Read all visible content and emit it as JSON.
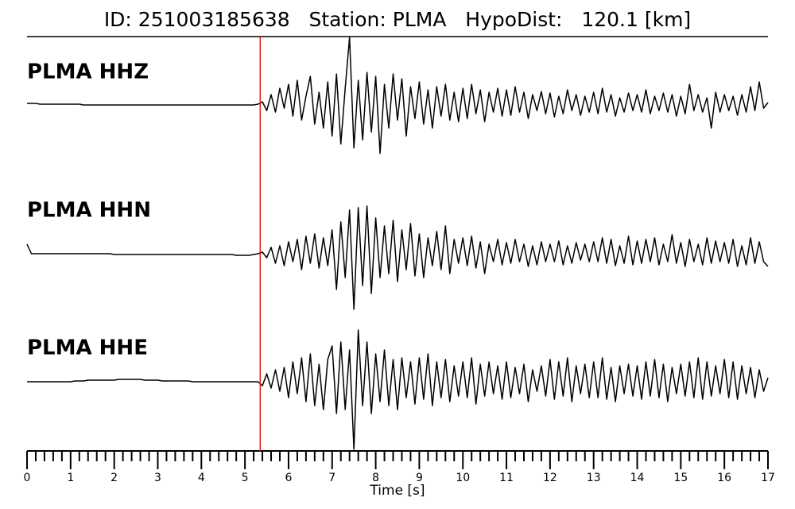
{
  "chart_data": {
    "type": "line",
    "title": "ID: 251003185638   Station: PLMA   HypoDist:   120.1 [km]",
    "xlabel": "Time [s]",
    "xlim": [
      0,
      17
    ],
    "xticks": [
      0,
      1,
      2,
      3,
      4,
      5,
      6,
      7,
      8,
      9,
      10,
      11,
      12,
      13,
      14,
      15,
      16,
      17
    ],
    "xminorticks": [
      0.2,
      0.4,
      0.6,
      0.8,
      1.2,
      1.4,
      1.6,
      1.8,
      2.2,
      2.4,
      2.6,
      2.8,
      3.2,
      3.4,
      3.6,
      3.8,
      4.2,
      4.4,
      4.6,
      4.8,
      5.2,
      5.4,
      5.6,
      5.8,
      6.2,
      6.4,
      6.6,
      6.8,
      7.2,
      7.4,
      7.6,
      7.8,
      8.2,
      8.4,
      8.6,
      8.8,
      9.2,
      9.4,
      9.6,
      9.8,
      10.2,
      10.4,
      10.6,
      10.8,
      11.2,
      11.4,
      11.6,
      11.8,
      12.2,
      12.4,
      12.6,
      12.8,
      13.2,
      13.4,
      13.6,
      13.8,
      14.2,
      14.4,
      14.6,
      14.8,
      15.2,
      15.4,
      15.6,
      15.8,
      16.2,
      16.4,
      16.6,
      16.8
    ],
    "pick_time": 5.35,
    "pick_color": "#e41a1c",
    "label_color": "#4c9a0a",
    "x": [
      0,
      0.1,
      0.2,
      0.3,
      0.4,
      0.5,
      0.6,
      0.7,
      0.8,
      0.9,
      1,
      1.1,
      1.2,
      1.3,
      1.4,
      1.5,
      1.6,
      1.7,
      1.8,
      1.9,
      2,
      2.1,
      2.2,
      2.3,
      2.4,
      2.5,
      2.6,
      2.7,
      2.8,
      2.9,
      3,
      3.1,
      3.2,
      3.3,
      3.4,
      3.5,
      3.6,
      3.7,
      3.8,
      3.9,
      4,
      4.1,
      4.2,
      4.3,
      4.4,
      4.5,
      4.6,
      4.7,
      4.8,
      4.9,
      5,
      5.1,
      5.2,
      5.3,
      5.4,
      5.5,
      5.6,
      5.7,
      5.8,
      5.9,
      6,
      6.1,
      6.2,
      6.3,
      6.4,
      6.5,
      6.6,
      6.7,
      6.8,
      6.9,
      7,
      7.1,
      7.2,
      7.3,
      7.4,
      7.5,
      7.6,
      7.7,
      7.8,
      7.9,
      8,
      8.1,
      8.2,
      8.3,
      8.4,
      8.5,
      8.6,
      8.7,
      8.8,
      8.9,
      9,
      9.1,
      9.2,
      9.3,
      9.4,
      9.5,
      9.6,
      9.7,
      9.8,
      9.9,
      10,
      10.1,
      10.2,
      10.3,
      10.4,
      10.5,
      10.6,
      10.7,
      10.8,
      10.9,
      11,
      11.1,
      11.2,
      11.3,
      11.4,
      11.5,
      11.6,
      11.7,
      11.8,
      11.9,
      12,
      12.1,
      12.2,
      12.3,
      12.4,
      12.5,
      12.6,
      12.7,
      12.8,
      12.9,
      13,
      13.1,
      13.2,
      13.3,
      13.4,
      13.5,
      13.6,
      13.7,
      13.8,
      13.9,
      14,
      14.1,
      14.2,
      14.3,
      14.4,
      14.5,
      14.6,
      14.7,
      14.8,
      14.9,
      15,
      15.1,
      15.2,
      15.3,
      15.4,
      15.5,
      15.6,
      15.7,
      15.8,
      15.9,
      16,
      16.1,
      16.2,
      16.3,
      16.4,
      16.5,
      16.6,
      16.7,
      16.8,
      16.9,
      17
    ],
    "series": [
      {
        "name": "PLMA HHZ",
        "color": "#000000",
        "values": [
          1,
          1,
          1,
          0,
          0,
          0,
          0,
          0,
          0,
          0,
          0,
          0,
          0,
          -1,
          -1,
          -1,
          -1,
          -1,
          -1,
          -1,
          -1,
          -1,
          -1,
          -1,
          -1,
          -1,
          -1,
          -1,
          -1,
          -1,
          -1,
          -1,
          -1,
          -1,
          -1,
          -1,
          -1,
          -1,
          -1,
          -1,
          -1,
          -1,
          -1,
          -1,
          -1,
          -1,
          -1,
          -1,
          -1,
          -1,
          -1,
          -1,
          -1,
          0,
          3,
          -8,
          12,
          -10,
          20,
          -5,
          25,
          -15,
          30,
          -20,
          10,
          35,
          -25,
          15,
          -30,
          28,
          -40,
          38,
          -50,
          20,
          84,
          -55,
          30,
          -45,
          40,
          -35,
          35,
          -62,
          25,
          -30,
          38,
          -20,
          32,
          -40,
          22,
          -18,
          28,
          -25,
          18,
          -30,
          22,
          -15,
          25,
          -20,
          15,
          -22,
          20,
          -18,
          25,
          -12,
          18,
          -22,
          15,
          -10,
          20,
          -15,
          18,
          -14,
          22,
          -10,
          15,
          -18,
          12,
          -8,
          16,
          -12,
          14,
          -16,
          10,
          -12,
          18,
          -8,
          12,
          -14,
          10,
          -10,
          15,
          -12,
          20,
          -10,
          12,
          -15,
          8,
          -10,
          14,
          -8,
          12,
          -10,
          18,
          -12,
          10,
          -8,
          14,
          -10,
          12,
          -15,
          10,
          -12,
          25,
          -8,
          12,
          -10,
          8,
          -30,
          15,
          -10,
          12,
          -8,
          10,
          -14,
          12,
          -10,
          22,
          -8,
          28,
          -5,
          2
        ]
      },
      {
        "name": "PLMA HHN",
        "color": "#000000",
        "values": [
          12,
          0,
          0,
          0,
          0,
          0,
          0,
          0,
          0,
          0,
          0,
          0,
          0,
          0,
          0,
          0,
          0,
          0,
          0,
          0,
          -1,
          -1,
          -1,
          -1,
          -1,
          -1,
          -1,
          -1,
          -1,
          -1,
          -1,
          -1,
          -1,
          -1,
          -1,
          -1,
          -1,
          -1,
          -1,
          -1,
          -1,
          -1,
          -1,
          -1,
          -1,
          -1,
          -1,
          -1,
          -2,
          -2,
          -2,
          -2,
          -1,
          0,
          2,
          -5,
          8,
          -12,
          10,
          -15,
          15,
          -10,
          18,
          -20,
          22,
          -12,
          25,
          -18,
          20,
          -15,
          30,
          -45,
          40,
          -30,
          55,
          -70,
          58,
          -40,
          60,
          -50,
          45,
          -30,
          35,
          -25,
          42,
          -35,
          30,
          -20,
          38,
          -28,
          25,
          -30,
          20,
          -15,
          28,
          -20,
          35,
          -25,
          18,
          -12,
          20,
          -15,
          22,
          -18,
          15,
          -25,
          12,
          -10,
          18,
          -14,
          14,
          -12,
          18,
          -10,
          12,
          -16,
          10,
          -14,
          15,
          -10,
          12,
          -10,
          16,
          -14,
          10,
          -12,
          14,
          -8,
          12,
          -10,
          15,
          -10,
          20,
          -12,
          18,
          -15,
          10,
          -12,
          22,
          -14,
          16,
          -12,
          18,
          -10,
          20,
          -14,
          12,
          -10,
          24,
          -12,
          14,
          -16,
          18,
          -10,
          12,
          -14,
          20,
          -12,
          16,
          -10,
          14,
          -12,
          18,
          -16,
          10,
          -14,
          20,
          -12,
          15,
          -10,
          -16
        ]
      },
      {
        "name": "PLMA HHE",
        "color": "#000000",
        "values": [
          0,
          0,
          0,
          0,
          0,
          0,
          0,
          0,
          0,
          0,
          0,
          1,
          1,
          1,
          2,
          2,
          2,
          2,
          2,
          2,
          2,
          3,
          3,
          3,
          3,
          3,
          3,
          2,
          2,
          2,
          2,
          1,
          1,
          1,
          1,
          1,
          1,
          1,
          0,
          0,
          0,
          0,
          0,
          0,
          0,
          0,
          0,
          0,
          0,
          0,
          0,
          0,
          0,
          0,
          -5,
          10,
          -8,
          15,
          -12,
          18,
          -20,
          25,
          -15,
          30,
          -25,
          35,
          -30,
          22,
          -35,
          28,
          45,
          -40,
          50,
          -35,
          40,
          -85,
          65,
          -30,
          50,
          -40,
          35,
          -25,
          40,
          -30,
          28,
          -35,
          30,
          -20,
          25,
          -28,
          30,
          -22,
          35,
          -30,
          25,
          -20,
          28,
          -25,
          20,
          -18,
          25,
          -20,
          30,
          -28,
          22,
          -18,
          25,
          -15,
          20,
          -22,
          25,
          -20,
          18,
          -15,
          22,
          -25,
          15,
          -12,
          20,
          -18,
          28,
          -22,
          25,
          -18,
          30,
          -25,
          20,
          -15,
          22,
          -20,
          25,
          -20,
          30,
          -22,
          18,
          -25,
          20,
          -15,
          22,
          -18,
          20,
          -22,
          25,
          -18,
          28,
          -20,
          22,
          -25,
          18,
          -15,
          22,
          -18,
          25,
          -20,
          30,
          -22,
          25,
          -18,
          20,
          -15,
          28,
          -20,
          25,
          -22,
          20,
          -15,
          18,
          -20,
          15,
          -12,
          5
        ]
      }
    ]
  }
}
